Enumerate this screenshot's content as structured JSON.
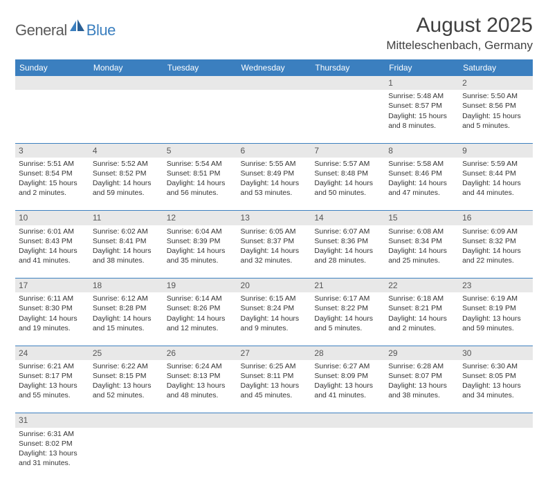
{
  "logo": {
    "part1": "General",
    "part2": "Blue"
  },
  "title": "August 2025",
  "location": "Mitteleschenbach, Germany",
  "colors": {
    "header_bg": "#3b7fbf",
    "header_fg": "#ffffff",
    "daynum_bg": "#e8e8e8",
    "border": "#3b7fbf",
    "text": "#333333",
    "logo_gray": "#5a5a5a",
    "logo_blue": "#3b7fbf"
  },
  "daynames": [
    "Sunday",
    "Monday",
    "Tuesday",
    "Wednesday",
    "Thursday",
    "Friday",
    "Saturday"
  ],
  "weeks": [
    [
      null,
      null,
      null,
      null,
      null,
      {
        "n": "1",
        "sr": "Sunrise: 5:48 AM",
        "ss": "Sunset: 8:57 PM",
        "d1": "Daylight: 15 hours",
        "d2": "and 8 minutes."
      },
      {
        "n": "2",
        "sr": "Sunrise: 5:50 AM",
        "ss": "Sunset: 8:56 PM",
        "d1": "Daylight: 15 hours",
        "d2": "and 5 minutes."
      }
    ],
    [
      {
        "n": "3",
        "sr": "Sunrise: 5:51 AM",
        "ss": "Sunset: 8:54 PM",
        "d1": "Daylight: 15 hours",
        "d2": "and 2 minutes."
      },
      {
        "n": "4",
        "sr": "Sunrise: 5:52 AM",
        "ss": "Sunset: 8:52 PM",
        "d1": "Daylight: 14 hours",
        "d2": "and 59 minutes."
      },
      {
        "n": "5",
        "sr": "Sunrise: 5:54 AM",
        "ss": "Sunset: 8:51 PM",
        "d1": "Daylight: 14 hours",
        "d2": "and 56 minutes."
      },
      {
        "n": "6",
        "sr": "Sunrise: 5:55 AM",
        "ss": "Sunset: 8:49 PM",
        "d1": "Daylight: 14 hours",
        "d2": "and 53 minutes."
      },
      {
        "n": "7",
        "sr": "Sunrise: 5:57 AM",
        "ss": "Sunset: 8:48 PM",
        "d1": "Daylight: 14 hours",
        "d2": "and 50 minutes."
      },
      {
        "n": "8",
        "sr": "Sunrise: 5:58 AM",
        "ss": "Sunset: 8:46 PM",
        "d1": "Daylight: 14 hours",
        "d2": "and 47 minutes."
      },
      {
        "n": "9",
        "sr": "Sunrise: 5:59 AM",
        "ss": "Sunset: 8:44 PM",
        "d1": "Daylight: 14 hours",
        "d2": "and 44 minutes."
      }
    ],
    [
      {
        "n": "10",
        "sr": "Sunrise: 6:01 AM",
        "ss": "Sunset: 8:43 PM",
        "d1": "Daylight: 14 hours",
        "d2": "and 41 minutes."
      },
      {
        "n": "11",
        "sr": "Sunrise: 6:02 AM",
        "ss": "Sunset: 8:41 PM",
        "d1": "Daylight: 14 hours",
        "d2": "and 38 minutes."
      },
      {
        "n": "12",
        "sr": "Sunrise: 6:04 AM",
        "ss": "Sunset: 8:39 PM",
        "d1": "Daylight: 14 hours",
        "d2": "and 35 minutes."
      },
      {
        "n": "13",
        "sr": "Sunrise: 6:05 AM",
        "ss": "Sunset: 8:37 PM",
        "d1": "Daylight: 14 hours",
        "d2": "and 32 minutes."
      },
      {
        "n": "14",
        "sr": "Sunrise: 6:07 AM",
        "ss": "Sunset: 8:36 PM",
        "d1": "Daylight: 14 hours",
        "d2": "and 28 minutes."
      },
      {
        "n": "15",
        "sr": "Sunrise: 6:08 AM",
        "ss": "Sunset: 8:34 PM",
        "d1": "Daylight: 14 hours",
        "d2": "and 25 minutes."
      },
      {
        "n": "16",
        "sr": "Sunrise: 6:09 AM",
        "ss": "Sunset: 8:32 PM",
        "d1": "Daylight: 14 hours",
        "d2": "and 22 minutes."
      }
    ],
    [
      {
        "n": "17",
        "sr": "Sunrise: 6:11 AM",
        "ss": "Sunset: 8:30 PM",
        "d1": "Daylight: 14 hours",
        "d2": "and 19 minutes."
      },
      {
        "n": "18",
        "sr": "Sunrise: 6:12 AM",
        "ss": "Sunset: 8:28 PM",
        "d1": "Daylight: 14 hours",
        "d2": "and 15 minutes."
      },
      {
        "n": "19",
        "sr": "Sunrise: 6:14 AM",
        "ss": "Sunset: 8:26 PM",
        "d1": "Daylight: 14 hours",
        "d2": "and 12 minutes."
      },
      {
        "n": "20",
        "sr": "Sunrise: 6:15 AM",
        "ss": "Sunset: 8:24 PM",
        "d1": "Daylight: 14 hours",
        "d2": "and 9 minutes."
      },
      {
        "n": "21",
        "sr": "Sunrise: 6:17 AM",
        "ss": "Sunset: 8:22 PM",
        "d1": "Daylight: 14 hours",
        "d2": "and 5 minutes."
      },
      {
        "n": "22",
        "sr": "Sunrise: 6:18 AM",
        "ss": "Sunset: 8:21 PM",
        "d1": "Daylight: 14 hours",
        "d2": "and 2 minutes."
      },
      {
        "n": "23",
        "sr": "Sunrise: 6:19 AM",
        "ss": "Sunset: 8:19 PM",
        "d1": "Daylight: 13 hours",
        "d2": "and 59 minutes."
      }
    ],
    [
      {
        "n": "24",
        "sr": "Sunrise: 6:21 AM",
        "ss": "Sunset: 8:17 PM",
        "d1": "Daylight: 13 hours",
        "d2": "and 55 minutes."
      },
      {
        "n": "25",
        "sr": "Sunrise: 6:22 AM",
        "ss": "Sunset: 8:15 PM",
        "d1": "Daylight: 13 hours",
        "d2": "and 52 minutes."
      },
      {
        "n": "26",
        "sr": "Sunrise: 6:24 AM",
        "ss": "Sunset: 8:13 PM",
        "d1": "Daylight: 13 hours",
        "d2": "and 48 minutes."
      },
      {
        "n": "27",
        "sr": "Sunrise: 6:25 AM",
        "ss": "Sunset: 8:11 PM",
        "d1": "Daylight: 13 hours",
        "d2": "and 45 minutes."
      },
      {
        "n": "28",
        "sr": "Sunrise: 6:27 AM",
        "ss": "Sunset: 8:09 PM",
        "d1": "Daylight: 13 hours",
        "d2": "and 41 minutes."
      },
      {
        "n": "29",
        "sr": "Sunrise: 6:28 AM",
        "ss": "Sunset: 8:07 PM",
        "d1": "Daylight: 13 hours",
        "d2": "and 38 minutes."
      },
      {
        "n": "30",
        "sr": "Sunrise: 6:30 AM",
        "ss": "Sunset: 8:05 PM",
        "d1": "Daylight: 13 hours",
        "d2": "and 34 minutes."
      }
    ],
    [
      {
        "n": "31",
        "sr": "Sunrise: 6:31 AM",
        "ss": "Sunset: 8:02 PM",
        "d1": "Daylight: 13 hours",
        "d2": "and 31 minutes."
      },
      null,
      null,
      null,
      null,
      null,
      null
    ]
  ]
}
